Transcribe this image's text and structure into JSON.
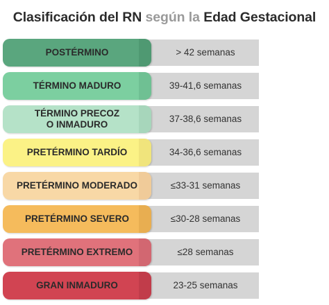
{
  "title": {
    "part1": "Clasificación del RN",
    "part2": "según la",
    "part3": "Edad Gestacional"
  },
  "rows": [
    {
      "label": "POSTÉRMINO",
      "value": "> 42 semanas",
      "color": "#5aa67e",
      "edge": "#4e9670"
    },
    {
      "label": "TÉRMINO MADURO",
      "value": "39-41,6 semanas",
      "color": "#7ccfa0",
      "edge": "#6dbd90"
    },
    {
      "label": "TÉRMINO PRECOZ\nO INMADURO",
      "value": "37-38,6 semanas",
      "color": "#b5e2c8",
      "edge": "#a5d3b8"
    },
    {
      "label": "PRETÉRMINO TARDÍO",
      "value": "34-36,6 semanas",
      "color": "#fbf286",
      "edge": "#ede27a"
    },
    {
      "label": "PRETÉRMINO MODERADO",
      "value": "≤33-31 semanas",
      "color": "#f8d8a6",
      "edge": "#eec997"
    },
    {
      "label": "PRETÉRMINO SEVERO",
      "value": "≤30-28 semanas",
      "color": "#f5bb5c",
      "edge": "#e5ab4f"
    },
    {
      "label": "PRETÉRMINO EXTREMO",
      "value": "≤28 semanas",
      "color": "#e0727b",
      "edge": "#cf6570"
    },
    {
      "label": "GRAN INMADURO",
      "value": "23-25 semanas",
      "color": "#d14452",
      "edge": "#be3b49"
    }
  ]
}
